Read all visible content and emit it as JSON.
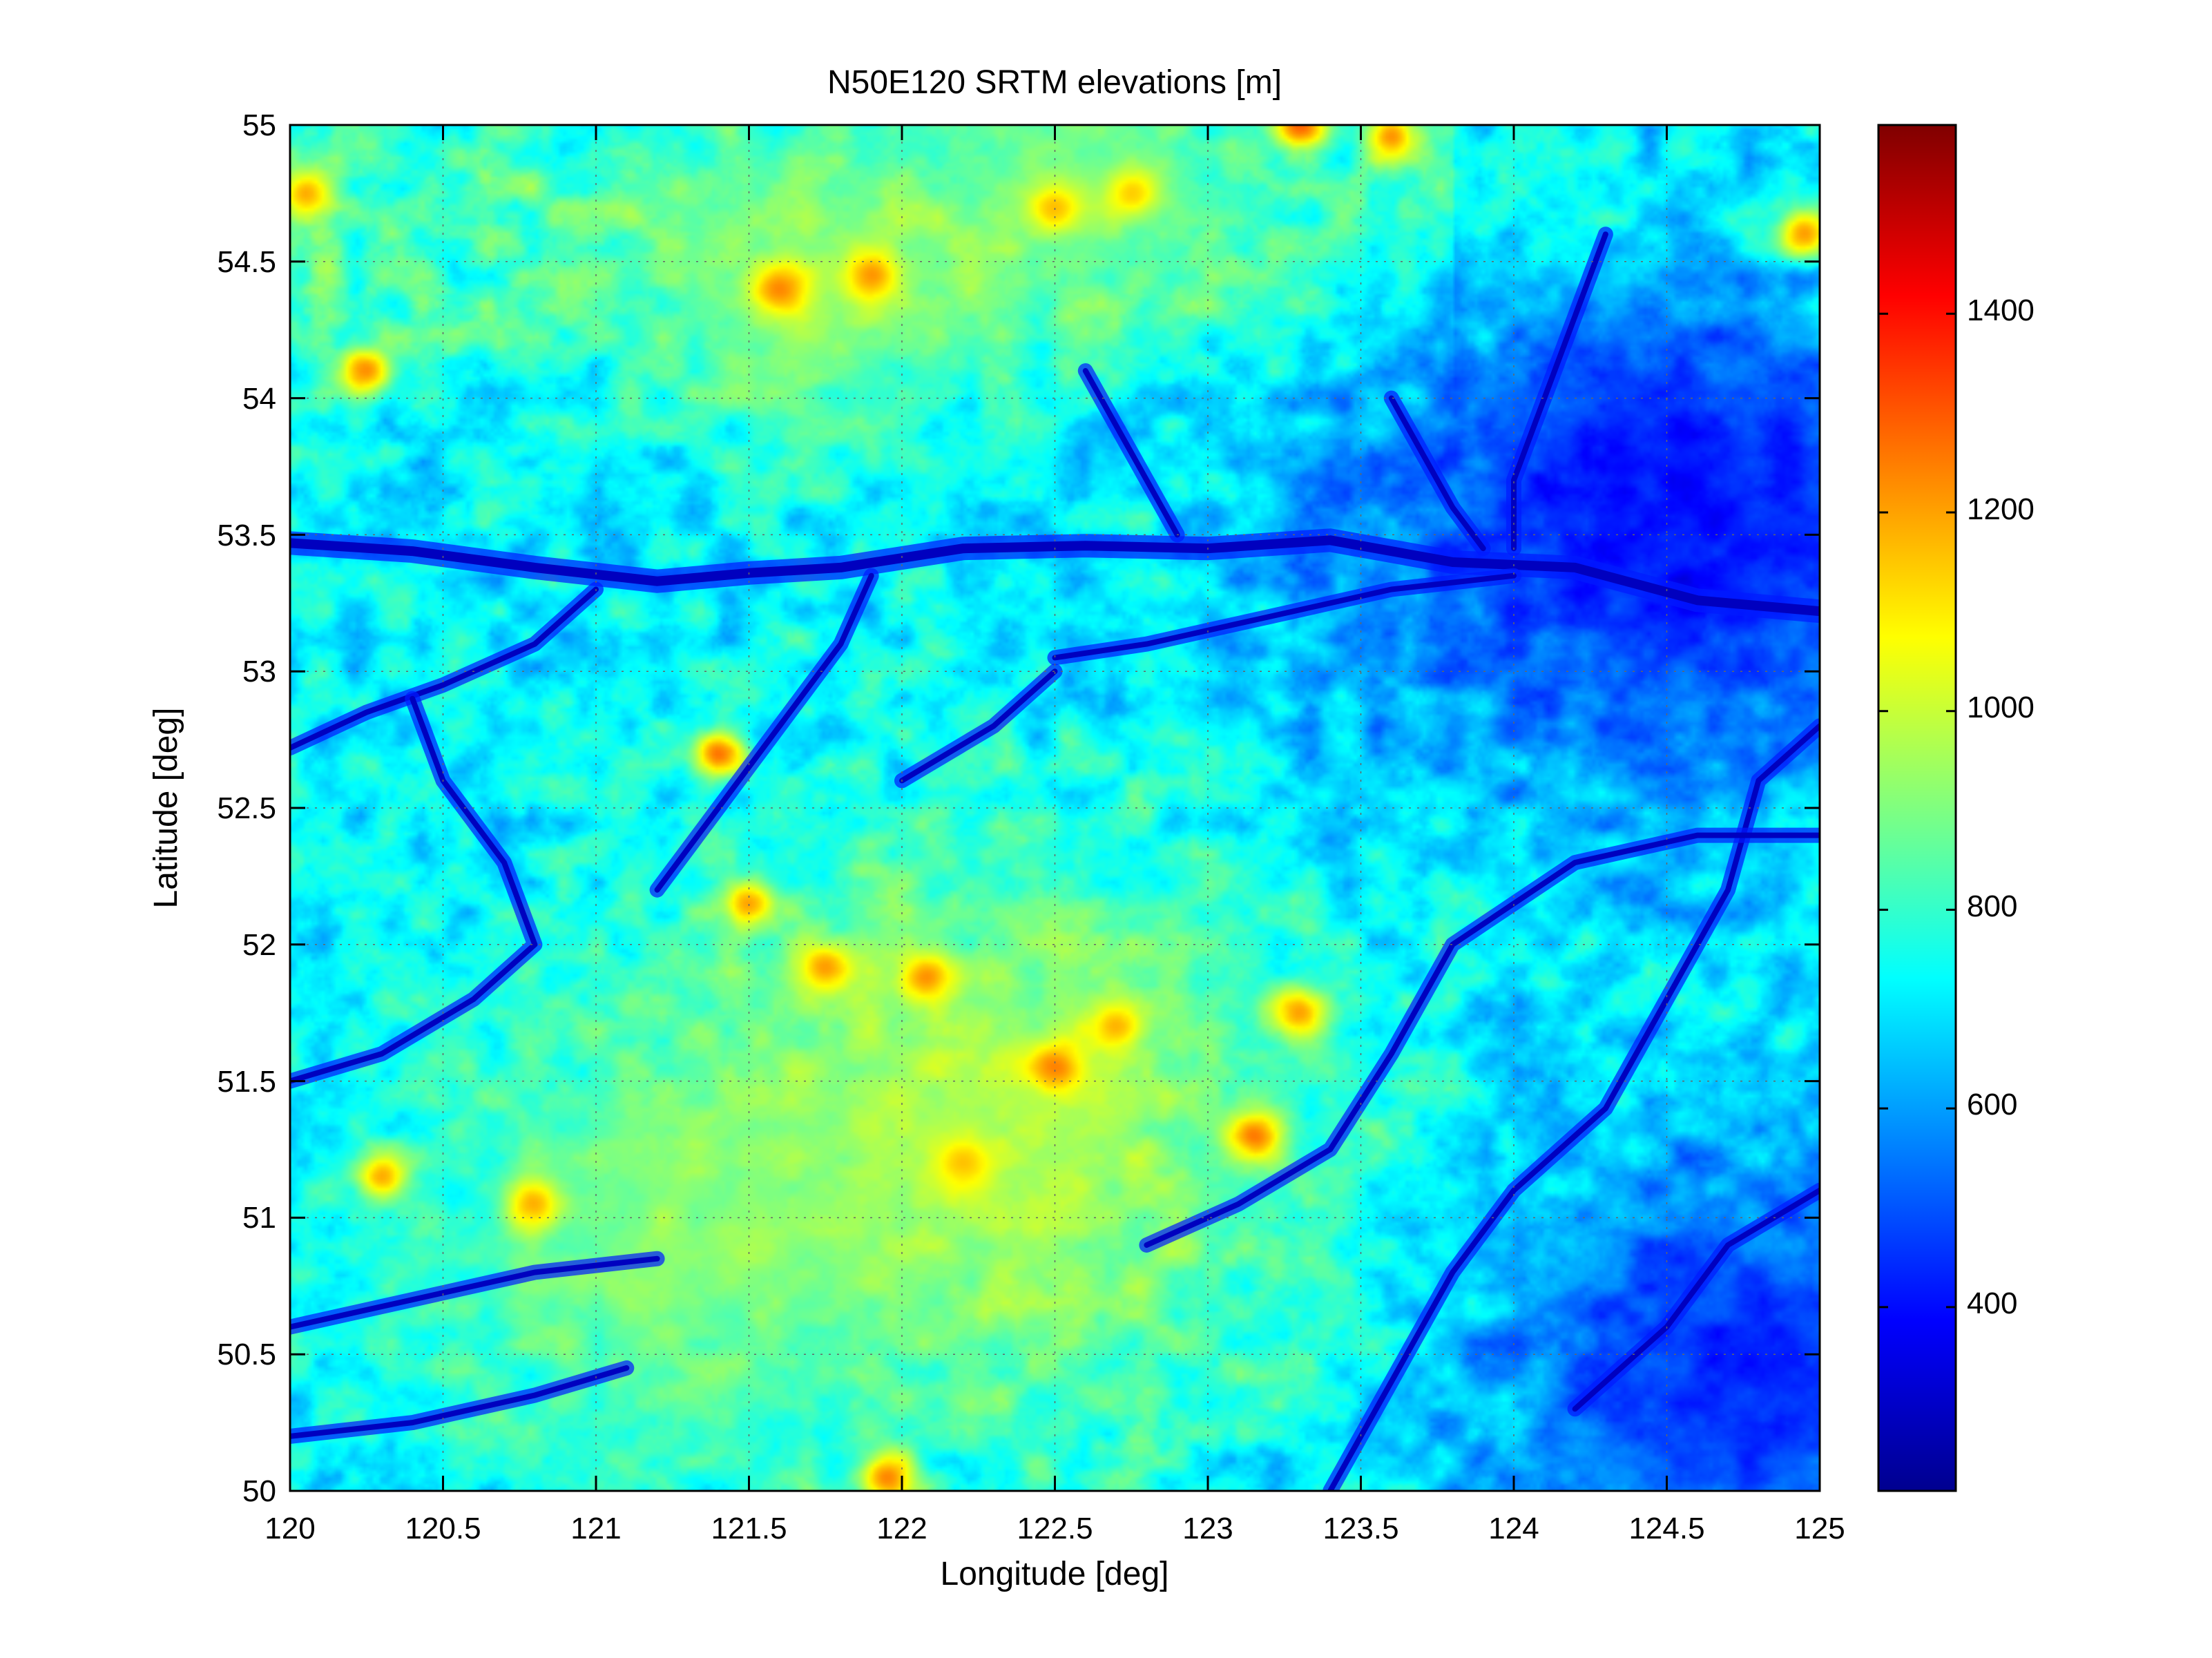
{
  "chart_data": {
    "type": "heatmap",
    "title": "N50E120 SRTM elevations [m]",
    "xlabel": "Longitude [deg]",
    "ylabel": "Latitude [deg]",
    "xlim": [
      120,
      125
    ],
    "ylim": [
      50,
      55
    ],
    "x_ticks": [
      "120",
      "120.5",
      "121",
      "121.5",
      "122",
      "122.5",
      "123",
      "123.5",
      "124",
      "124.5",
      "125"
    ],
    "y_ticks": [
      "50",
      "50.5",
      "51",
      "51.5",
      "52",
      "52.5",
      "53",
      "53.5",
      "54",
      "54.5",
      "55"
    ],
    "grid": true,
    "colormap": "jet",
    "colorbar": {
      "range": [
        215,
        1590
      ],
      "ticks": [
        "400",
        "600",
        "800",
        "1000",
        "1200",
        "1400"
      ],
      "placement": "right"
    },
    "features": [
      {
        "kind": "river",
        "points": [
          [
            120.0,
            53.47
          ],
          [
            120.4,
            53.44
          ],
          [
            120.8,
            53.38
          ],
          [
            121.2,
            53.33
          ],
          [
            121.5,
            53.36
          ],
          [
            121.8,
            53.38
          ],
          [
            122.2,
            53.45
          ],
          [
            122.6,
            53.46
          ],
          [
            123.0,
            53.45
          ],
          [
            123.4,
            53.48
          ],
          [
            123.8,
            53.4
          ],
          [
            124.2,
            53.38
          ],
          [
            124.6,
            53.26
          ],
          [
            125.0,
            53.22
          ]
        ]
      },
      {
        "kind": "river",
        "points": [
          [
            120.0,
            52.72
          ],
          [
            120.25,
            52.85
          ],
          [
            120.5,
            52.95
          ],
          [
            120.8,
            53.1
          ],
          [
            121.0,
            53.3
          ]
        ]
      },
      {
        "kind": "river",
        "points": [
          [
            120.0,
            51.5
          ],
          [
            120.3,
            51.6
          ],
          [
            120.6,
            51.8
          ],
          [
            120.8,
            52.0
          ],
          [
            120.7,
            52.3
          ],
          [
            120.5,
            52.6
          ],
          [
            120.4,
            52.9
          ]
        ]
      },
      {
        "kind": "river",
        "points": [
          [
            120.0,
            50.6
          ],
          [
            120.4,
            50.7
          ],
          [
            120.8,
            50.8
          ],
          [
            121.2,
            50.85
          ]
        ]
      },
      {
        "kind": "river",
        "points": [
          [
            120.0,
            50.2
          ],
          [
            120.4,
            50.25
          ],
          [
            120.8,
            50.35
          ],
          [
            121.1,
            50.45
          ]
        ]
      },
      {
        "kind": "river",
        "points": [
          [
            122.5,
            53.05
          ],
          [
            122.8,
            53.1
          ],
          [
            123.2,
            53.2
          ],
          [
            123.6,
            53.3
          ],
          [
            124.0,
            53.35
          ]
        ]
      },
      {
        "kind": "river",
        "points": [
          [
            123.4,
            50.0
          ],
          [
            123.6,
            50.4
          ],
          [
            123.8,
            50.8
          ],
          [
            124.0,
            51.1
          ],
          [
            124.3,
            51.4
          ],
          [
            124.5,
            51.8
          ],
          [
            124.7,
            52.2
          ],
          [
            124.8,
            52.6
          ],
          [
            125.0,
            52.8
          ]
        ]
      },
      {
        "kind": "river",
        "points": [
          [
            122.8,
            50.9
          ],
          [
            123.1,
            51.05
          ],
          [
            123.4,
            51.25
          ],
          [
            123.6,
            51.6
          ],
          [
            123.8,
            52.0
          ],
          [
            124.2,
            52.3
          ],
          [
            124.6,
            52.4
          ],
          [
            125.0,
            52.4
          ]
        ]
      },
      {
        "kind": "river",
        "points": [
          [
            124.2,
            50.3
          ],
          [
            124.5,
            50.6
          ],
          [
            124.7,
            50.9
          ],
          [
            125.0,
            51.1
          ]
        ]
      },
      {
        "kind": "river",
        "points": [
          [
            123.6,
            54.0
          ],
          [
            123.7,
            53.8
          ],
          [
            123.8,
            53.6
          ],
          [
            123.9,
            53.45
          ]
        ]
      },
      {
        "kind": "river",
        "points": [
          [
            122.6,
            54.1
          ],
          [
            122.7,
            53.9
          ],
          [
            122.8,
            53.7
          ],
          [
            122.9,
            53.5
          ]
        ]
      },
      {
        "kind": "river",
        "points": [
          [
            124.3,
            54.6
          ],
          [
            124.2,
            54.3
          ],
          [
            124.1,
            54.0
          ],
          [
            124.0,
            53.7
          ],
          [
            124.0,
            53.45
          ]
        ]
      },
      {
        "kind": "river",
        "points": [
          [
            121.2,
            52.2
          ],
          [
            121.4,
            52.5
          ],
          [
            121.6,
            52.8
          ],
          [
            121.8,
            53.1
          ],
          [
            121.9,
            53.35
          ]
        ]
      },
      {
        "kind": "river",
        "points": [
          [
            122.0,
            52.6
          ],
          [
            122.3,
            52.8
          ],
          [
            122.5,
            53.0
          ]
        ]
      },
      {
        "kind": "peak",
        "x": 121.6,
        "y": 54.4,
        "elev": 1560
      },
      {
        "kind": "peak",
        "x": 121.9,
        "y": 54.45,
        "elev": 1500
      },
      {
        "kind": "peak",
        "x": 122.5,
        "y": 54.7,
        "elev": 1450
      },
      {
        "kind": "peak",
        "x": 122.75,
        "y": 54.75,
        "elev": 1380
      },
      {
        "kind": "peak",
        "x": 123.3,
        "y": 55.0,
        "elev": 1400
      },
      {
        "kind": "peak",
        "x": 123.6,
        "y": 54.96,
        "elev": 1300
      },
      {
        "kind": "peak",
        "x": 120.25,
        "y": 54.1,
        "elev": 1300
      },
      {
        "kind": "peak",
        "x": 120.05,
        "y": 54.75,
        "elev": 1250
      },
      {
        "kind": "peak",
        "x": 122.5,
        "y": 51.55,
        "elev": 1500
      },
      {
        "kind": "peak",
        "x": 122.08,
        "y": 51.88,
        "elev": 1400
      },
      {
        "kind": "peak",
        "x": 121.75,
        "y": 51.92,
        "elev": 1350
      },
      {
        "kind": "peak",
        "x": 123.15,
        "y": 51.3,
        "elev": 1400
      },
      {
        "kind": "peak",
        "x": 122.2,
        "y": 51.2,
        "elev": 1350
      },
      {
        "kind": "peak",
        "x": 120.8,
        "y": 51.05,
        "elev": 1400
      },
      {
        "kind": "peak",
        "x": 120.3,
        "y": 51.15,
        "elev": 1300
      },
      {
        "kind": "peak",
        "x": 121.4,
        "y": 52.7,
        "elev": 1350
      },
      {
        "kind": "peak",
        "x": 121.5,
        "y": 52.15,
        "elev": 1300
      },
      {
        "kind": "peak",
        "x": 121.95,
        "y": 50.05,
        "elev": 1350
      },
      {
        "kind": "peak",
        "x": 124.95,
        "y": 54.6,
        "elev": 1350
      },
      {
        "kind": "peak",
        "x": 122.7,
        "y": 51.7,
        "elev": 1300
      },
      {
        "kind": "peak",
        "x": 123.3,
        "y": 51.75,
        "elev": 1300
      },
      {
        "kind": "plateau",
        "x": 122.3,
        "y": 51.3,
        "elev": 1080,
        "r": 0.9
      },
      {
        "kind": "plateau",
        "x": 121.2,
        "y": 50.9,
        "elev": 1000,
        "r": 0.8
      },
      {
        "kind": "plateau",
        "x": 121.7,
        "y": 54.4,
        "elev": 1050,
        "r": 0.55
      },
      {
        "kind": "plateau",
        "x": 122.6,
        "y": 54.8,
        "elev": 980,
        "r": 0.5
      },
      {
        "kind": "lowland",
        "x": 124.6,
        "y": 53.6,
        "elev": 300,
        "r": 0.7
      },
      {
        "kind": "lowland",
        "x": 124.8,
        "y": 50.4,
        "elev": 330,
        "r": 0.6
      }
    ]
  }
}
